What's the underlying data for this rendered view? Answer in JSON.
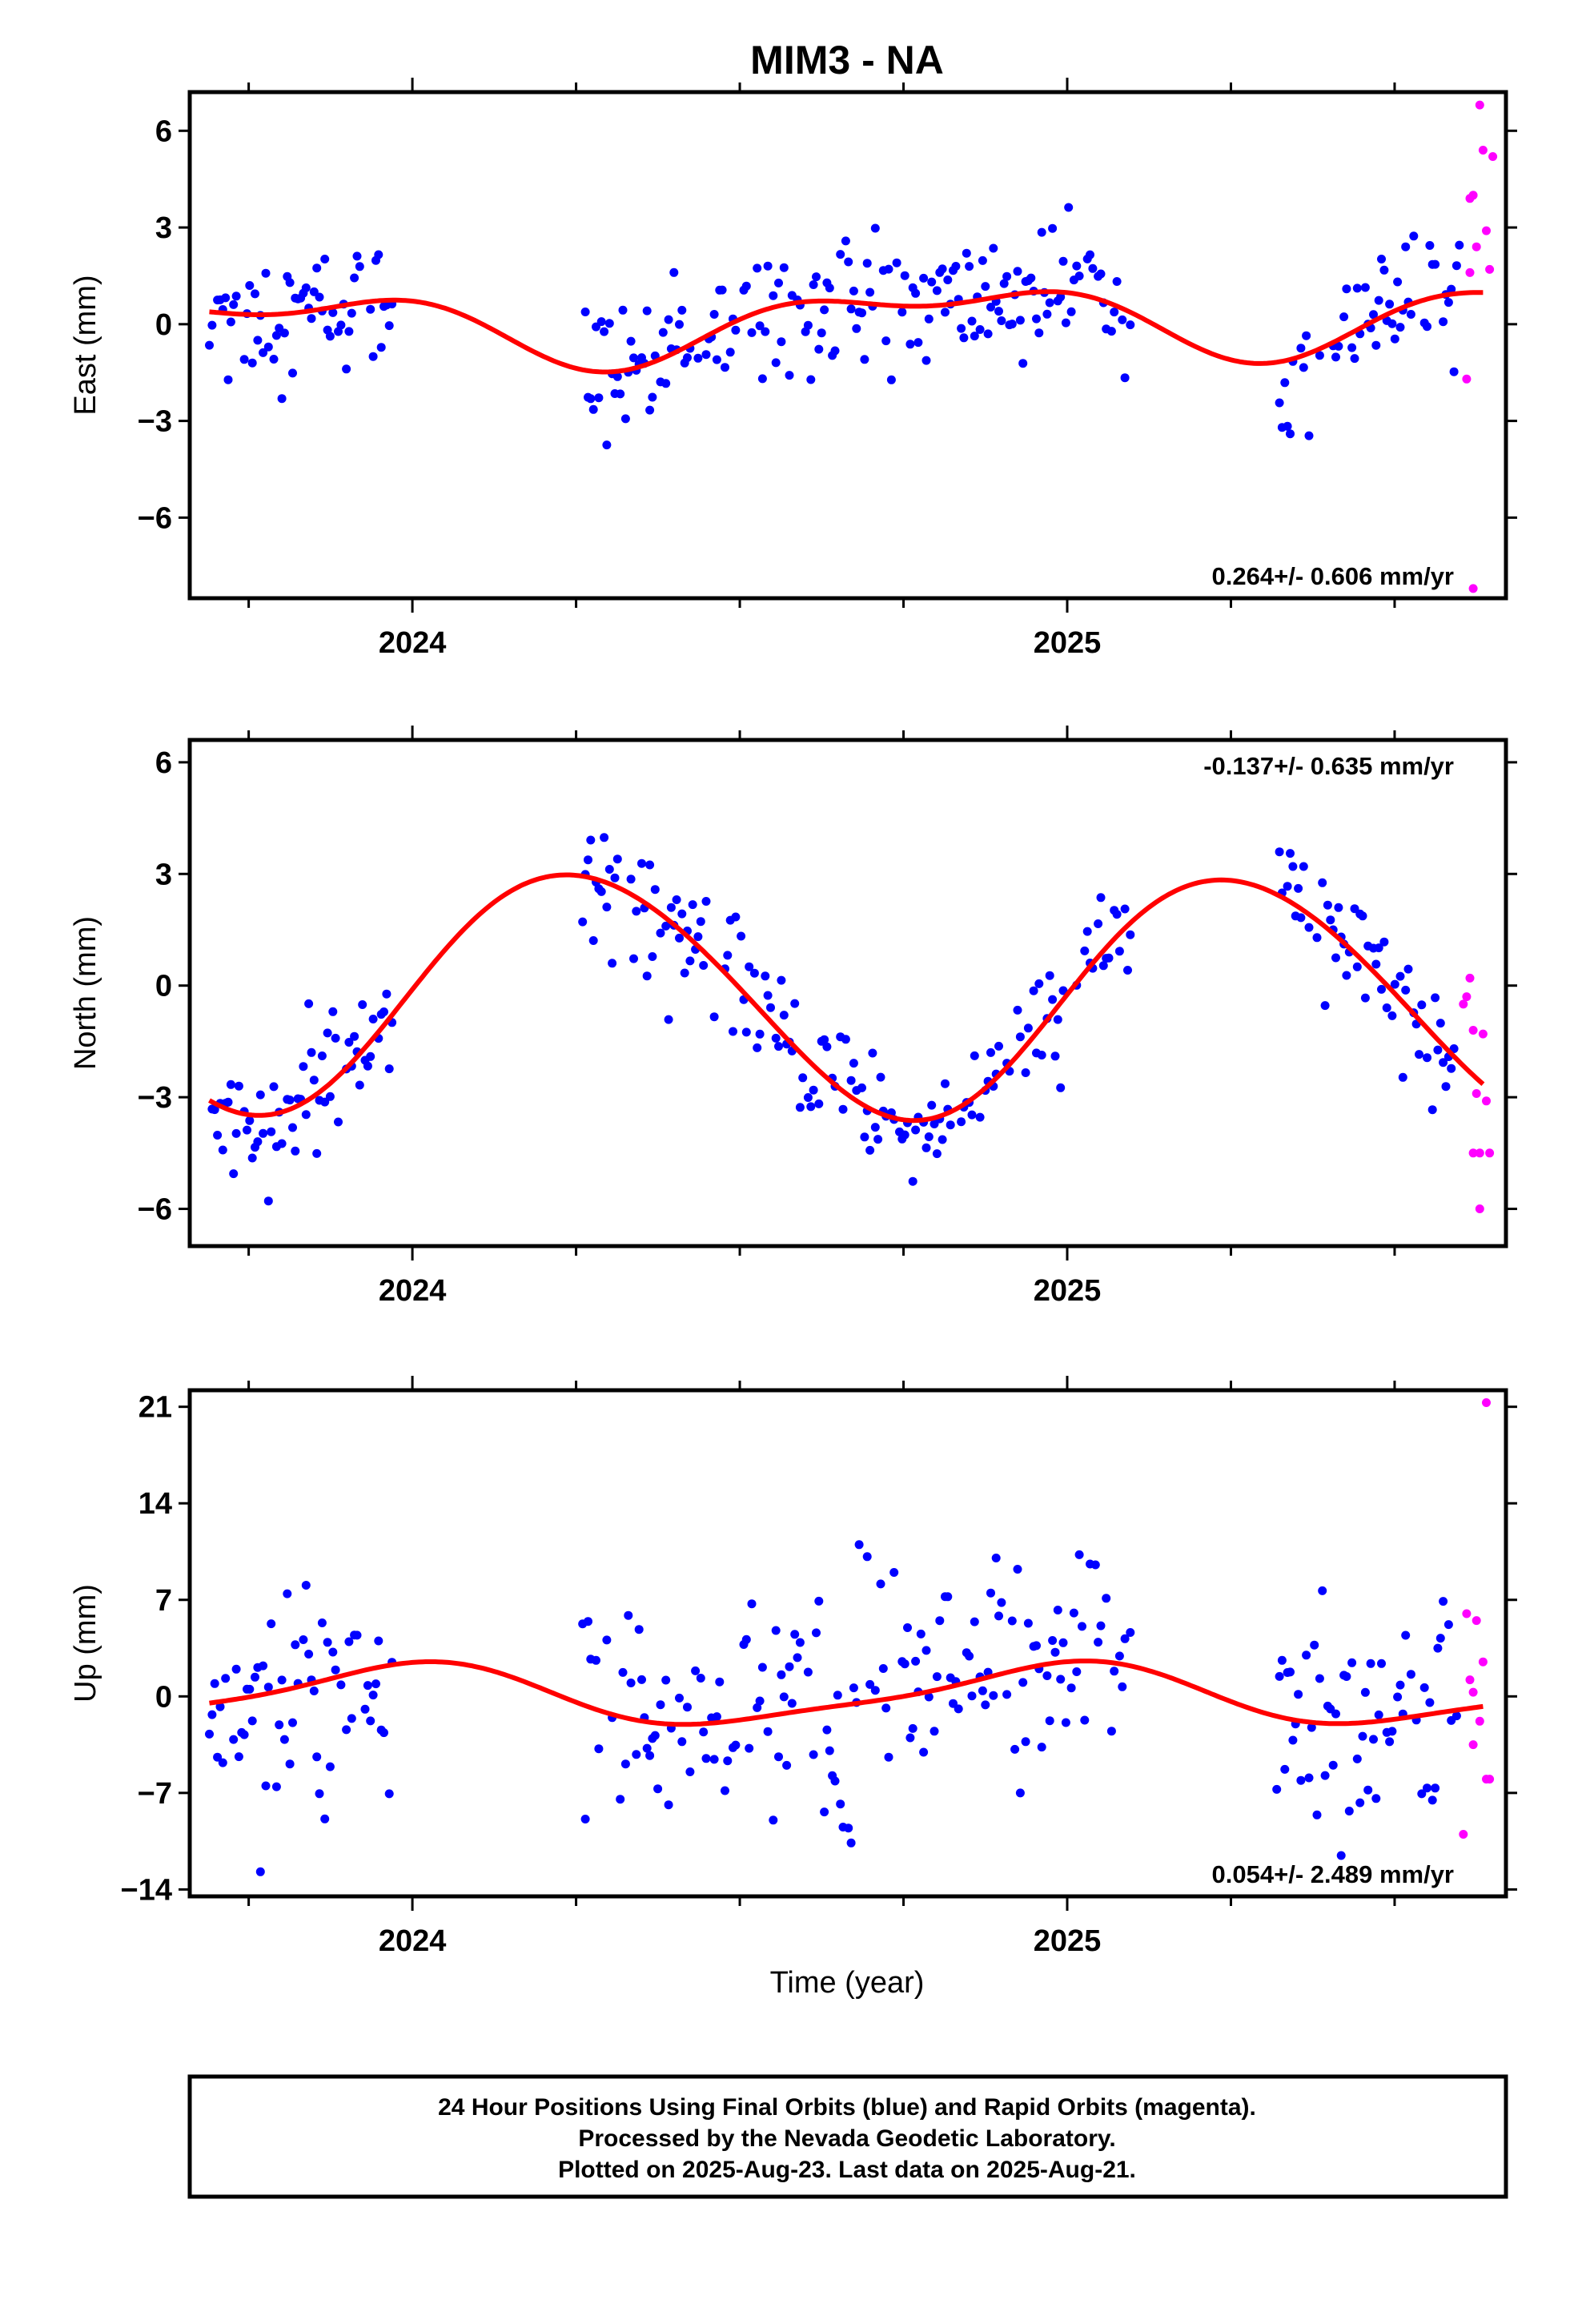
{
  "title": "MIM3 - NA",
  "xlabel": "Time (year)",
  "footer": {
    "line1": "24 Hour Positions Using Final Orbits (blue) and Rapid Orbits (magenta).",
    "line2": "Processed by the Nevada Geodetic Laboratory.",
    "line3": "Plotted on 2025-Aug-23. Last data on 2025-Aug-21."
  },
  "colors": {
    "final": "#0000ff",
    "rapid": "#ff00ff",
    "fit": "#ff0000",
    "frame": "#000000"
  },
  "chart_data": [
    {
      "type": "scatter",
      "id": "east",
      "ylabel": "East (mm)",
      "xlim": [
        2023.66,
        2025.67
      ],
      "ylim": [
        -8.5,
        7.2
      ],
      "yticks": [
        -6,
        -3,
        0,
        3,
        6
      ],
      "ytick_labels": [
        "−6",
        "−3",
        "0",
        "3",
        "6"
      ],
      "xticks_major": [
        2024,
        2025
      ],
      "xtick_labels": [
        "2024",
        "2025"
      ],
      "rate_text": "0.264+/- 0.606 mm/yr",
      "rate_position": "bottom-right",
      "fit": {
        "mean": 0.1,
        "trend": 0.264,
        "annual_sin": -0.9,
        "annual_cos": 0.35,
        "semi_sin": 0.25,
        "semi_cos": 0.45
      },
      "series": [
        {
          "kind": "final",
          "spans": [
            [
              2023.69,
              2023.97
            ],
            [
              2024.26,
              2025.1
            ],
            [
              2025.32,
              2025.6
            ]
          ],
          "spread": 1.0,
          "step": 0.0041
        },
        {
          "kind": "rapid",
          "points": [
            [
              2025.61,
              -1.7
            ],
            [
              2025.615,
              1.6
            ],
            [
              2025.62,
              4.0
            ],
            [
              2025.625,
              2.4
            ],
            [
              2025.63,
              6.8
            ],
            [
              2025.635,
              5.4
            ],
            [
              2025.64,
              2.9
            ],
            [
              2025.645,
              1.7
            ],
            [
              2025.65,
              5.2
            ],
            [
              2025.62,
              -8.2
            ],
            [
              2025.615,
              3.9
            ]
          ]
        }
      ]
    },
    {
      "type": "scatter",
      "id": "north",
      "ylabel": "North (mm)",
      "xlim": [
        2023.66,
        2025.67
      ],
      "ylim": [
        -7.0,
        6.6
      ],
      "yticks": [
        -6,
        -3,
        0,
        3,
        6
      ],
      "ytick_labels": [
        "−6",
        "−3",
        "0",
        "3",
        "6"
      ],
      "xticks_major": [
        2024,
        2025
      ],
      "xtick_labels": [
        "2024",
        "2025"
      ],
      "rate_text": "-0.137+/- 0.635 mm/yr",
      "rate_position": "top-right",
      "fit": {
        "mean": -0.25,
        "trend": -0.137,
        "annual_sin": 3.25,
        "annual_cos": -0.05,
        "semi_sin": 0.15,
        "semi_cos": 0.1
      },
      "series": [
        {
          "kind": "final",
          "spans": [
            [
              2023.69,
              2023.97
            ],
            [
              2024.26,
              2025.1
            ],
            [
              2025.32,
              2025.6
            ]
          ],
          "spread": 0.8,
          "step": 0.0041
        },
        {
          "kind": "rapid",
          "points": [
            [
              2025.605,
              -0.5
            ],
            [
              2025.61,
              -0.3
            ],
            [
              2025.615,
              0.2
            ],
            [
              2025.62,
              -1.2
            ],
            [
              2025.625,
              -2.9
            ],
            [
              2025.63,
              -4.5
            ],
            [
              2025.635,
              -1.3
            ],
            [
              2025.64,
              -3.1
            ],
            [
              2025.645,
              -4.5
            ],
            [
              2025.63,
              -6.0
            ],
            [
              2025.62,
              -4.5
            ]
          ]
        }
      ]
    },
    {
      "type": "scatter",
      "id": "up",
      "ylabel": "Up (mm)",
      "xlim": [
        2023.66,
        2025.67
      ],
      "ylim": [
        -14.5,
        22.2
      ],
      "yticks": [
        -14,
        -7,
        0,
        7,
        14,
        21
      ],
      "ytick_labels": [
        "−14",
        "−7",
        "0",
        "7",
        "14",
        "21"
      ],
      "xticks_major": [
        2024,
        2025
      ],
      "xtick_labels": [
        "2024",
        "2025"
      ],
      "rate_text": "0.054+/- 2.489 mm/yr",
      "rate_position": "bottom-right",
      "fit": {
        "mean": 0.1,
        "trend": 0.054,
        "annual_sin": -0.2,
        "annual_cos": 2.1,
        "semi_sin": 0.4,
        "semi_cos": 0.3
      },
      "series": [
        {
          "kind": "final",
          "spans": [
            [
              2023.69,
              2023.97
            ],
            [
              2024.26,
              2025.1
            ],
            [
              2025.32,
              2025.6
            ]
          ],
          "spread": 4.5,
          "step": 0.0041
        },
        {
          "kind": "rapid",
          "points": [
            [
              2025.605,
              -10.0
            ],
            [
              2025.61,
              6.0
            ],
            [
              2025.615,
              1.2
            ],
            [
              2025.62,
              -3.5
            ],
            [
              2025.625,
              5.5
            ],
            [
              2025.63,
              -1.8
            ],
            [
              2025.635,
              2.5
            ],
            [
              2025.64,
              -6.0
            ],
            [
              2025.645,
              -6.0
            ],
            [
              2025.64,
              21.3
            ],
            [
              2025.62,
              0.3
            ]
          ]
        }
      ]
    }
  ]
}
